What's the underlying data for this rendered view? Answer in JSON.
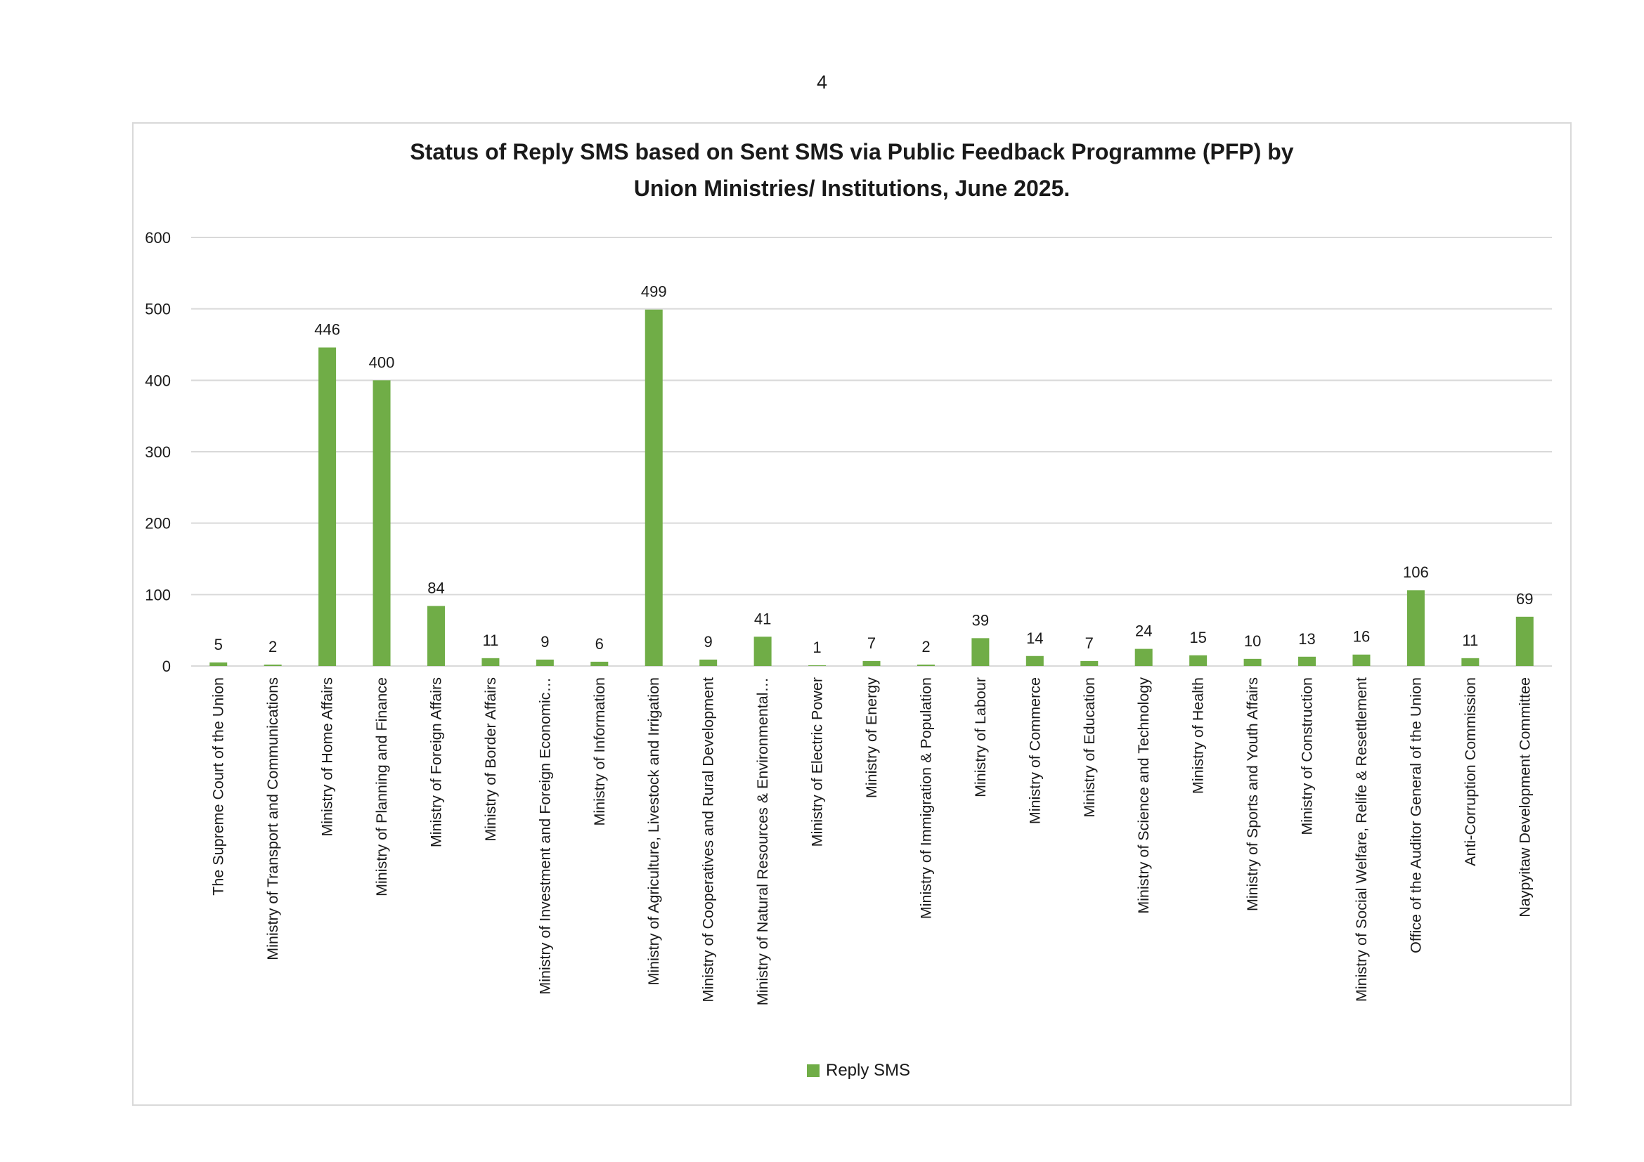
{
  "page_number": "4",
  "colors": {
    "bar": "#70ad47",
    "gridline": "#d9d9d9",
    "frame": "#d9d9d9"
  },
  "chart_data": {
    "type": "bar",
    "title_lines": [
      "Status of Reply SMS based on Sent SMS via Public Feedback Programme (PFP) by",
      "Union Ministries/ Institutions, June 2025."
    ],
    "xlabel": "",
    "ylabel": "",
    "ylim": [
      0,
      600
    ],
    "yticks": [
      0,
      100,
      200,
      300,
      400,
      500,
      600
    ],
    "grid": true,
    "legend_position": "bottom",
    "categories": [
      "The Supreme Court of the Union",
      "Ministry of Transport and Communications",
      "Ministry of Home Affairs",
      "Ministry of Planning and Finance",
      "Ministry of Foreign Affairs",
      "Ministry of Border Affairs",
      "Ministry of Investment and Foreign Economic…",
      "Ministry of Information",
      "Ministry of Agriculture, Livestock and Irrigation",
      "Ministry of Cooperatives and Rural Development",
      "Ministry of Natural Resources & Environmental…",
      "Ministry of Electric Power",
      "Ministry of Energy",
      "Ministry of Immigration & Population",
      "Ministry of Labour",
      "Ministry of Commerce",
      "Ministry of Education",
      "Ministry of Science and Technology",
      "Ministry of Health",
      "Ministry of Sports and Youth Affairs",
      "Ministry of Construction",
      "Ministry of Social Welfare, Relife & Resettlement",
      "Office of the Auditor General of the Union",
      "Anti-Corruption Commission",
      "Naypyitaw Development Committee"
    ],
    "series": [
      {
        "name": "Reply SMS",
        "values": [
          5,
          2,
          446,
          400,
          84,
          11,
          9,
          6,
          499,
          9,
          41,
          1,
          7,
          2,
          39,
          14,
          7,
          24,
          15,
          10,
          13,
          16,
          106,
          11,
          69
        ]
      }
    ]
  }
}
